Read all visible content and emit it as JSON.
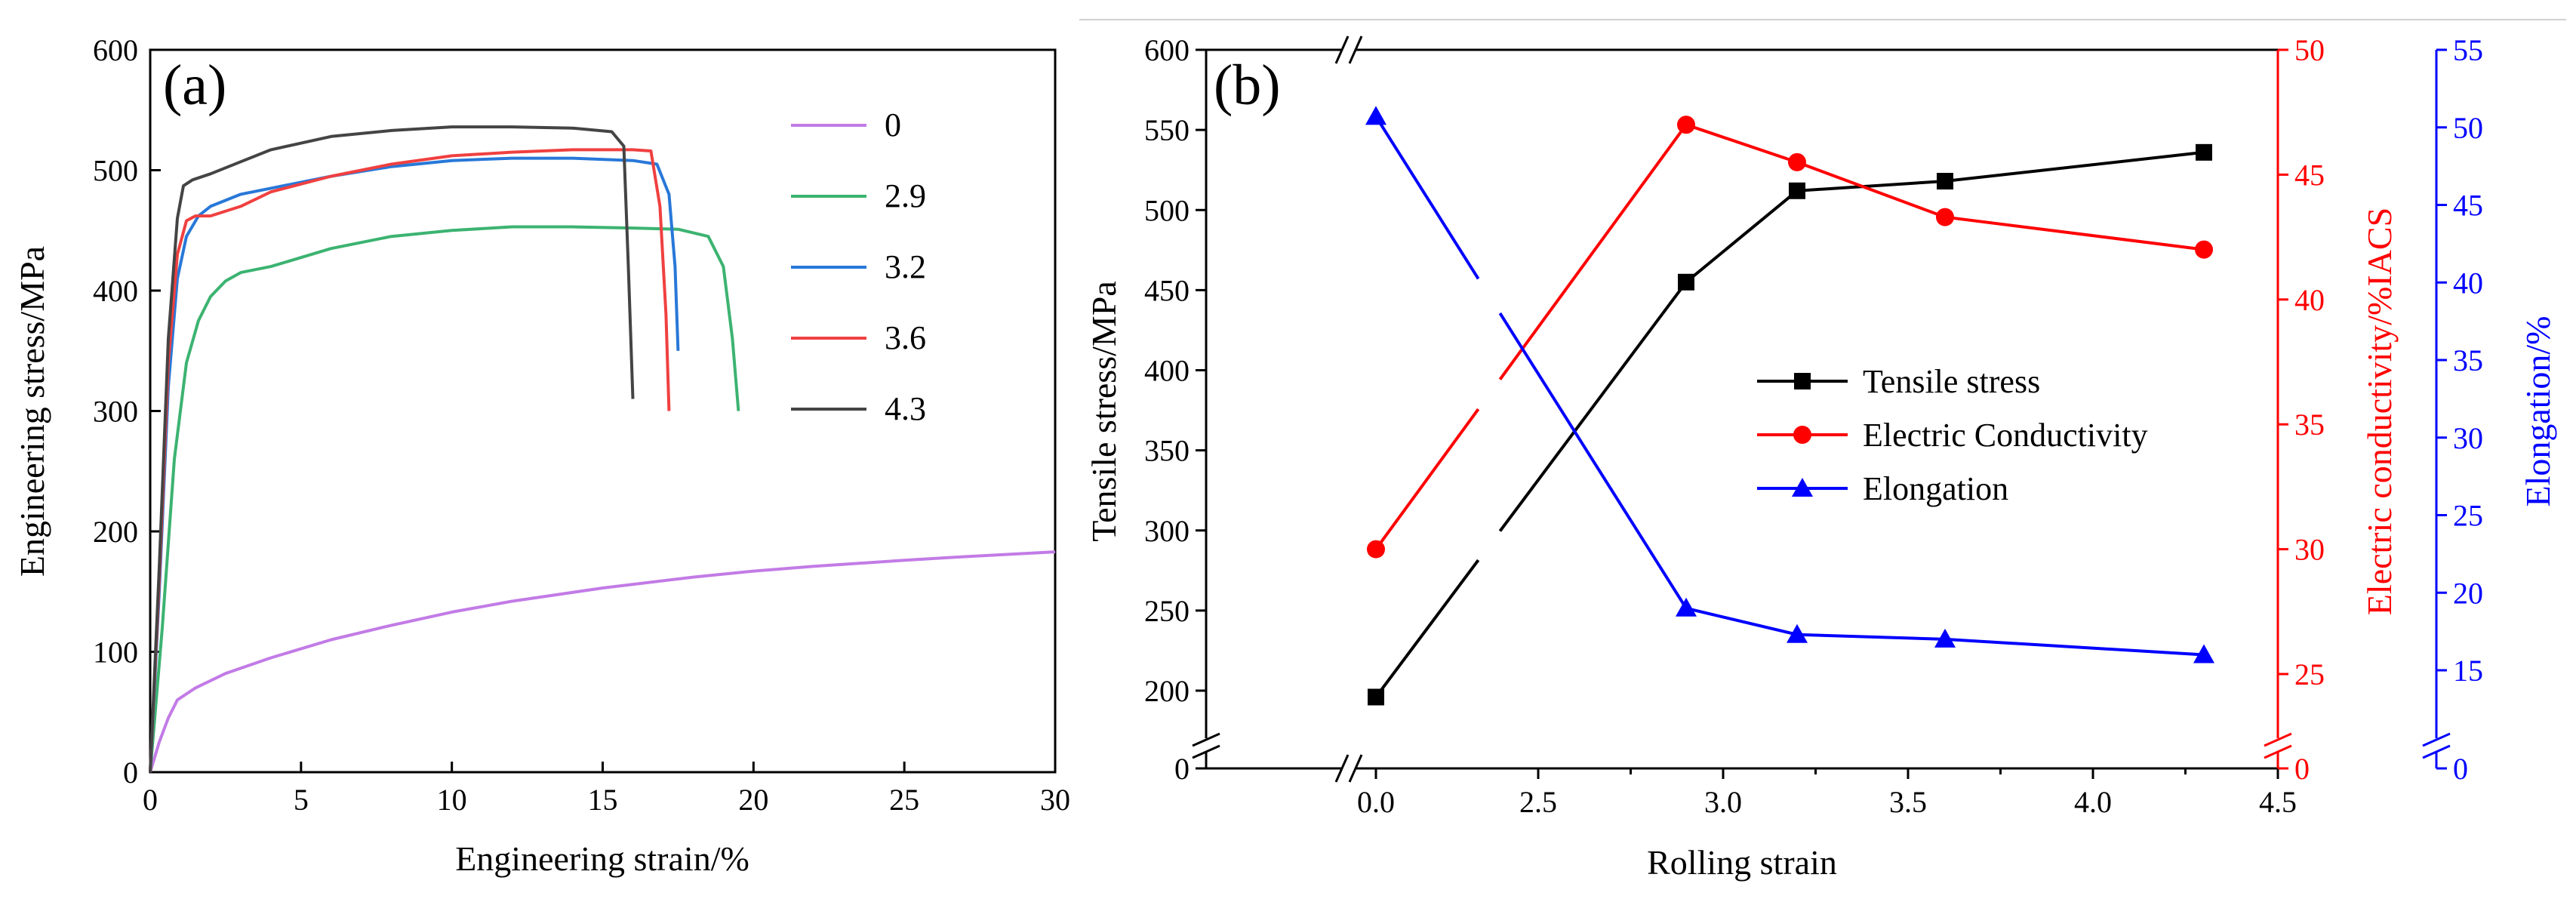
{
  "chart_data": [
    {
      "type": "line",
      "panel_label": "(a)",
      "xlabel": "Engineering strain/%",
      "ylabel": "Engineering stress/MPa",
      "xlim": [
        0,
        30
      ],
      "ylim": [
        0,
        600
      ],
      "xticks": [
        "0",
        "5",
        "10",
        "15",
        "20",
        "25",
        "30"
      ],
      "yticks": [
        "0",
        "100",
        "200",
        "300",
        "400",
        "500",
        "600"
      ],
      "grid": false,
      "legend_position": "top-right",
      "series": [
        {
          "name": "0",
          "color": "#c27be6",
          "x": [
            0,
            0.3,
            0.6,
            0.9,
            1.5,
            2.5,
            4,
            6,
            8,
            10,
            12,
            15,
            18,
            20,
            22,
            25,
            27,
            30
          ],
          "y": [
            0,
            25,
            45,
            60,
            70,
            82,
            95,
            110,
            122,
            133,
            142,
            153,
            162,
            167,
            171,
            176,
            179,
            183
          ]
        },
        {
          "name": "2.9",
          "color": "#3cb371",
          "x": [
            0,
            0.4,
            0.8,
            1.2,
            1.6,
            2.0,
            2.5,
            3.0,
            4,
            6,
            8,
            10,
            12,
            14,
            16,
            17.5,
            18.5,
            19.0,
            19.3,
            19.5
          ],
          "y": [
            0,
            120,
            260,
            340,
            375,
            395,
            408,
            415,
            420,
            435,
            445,
            450,
            453,
            453,
            452,
            451,
            445,
            420,
            360,
            300
          ]
        },
        {
          "name": "3.2",
          "color": "#2878d8",
          "x": [
            0,
            0.3,
            0.6,
            0.9,
            1.2,
            1.6,
            2.0,
            2.5,
            3.0,
            4,
            6,
            8,
            10,
            12,
            14,
            16,
            16.8,
            17.2,
            17.4,
            17.5
          ],
          "y": [
            0,
            150,
            320,
            410,
            445,
            462,
            470,
            475,
            480,
            485,
            495,
            503,
            508,
            510,
            510,
            508,
            505,
            480,
            420,
            350
          ]
        },
        {
          "name": "3.6",
          "color": "#f04040",
          "x": [
            0,
            0.3,
            0.6,
            0.9,
            1.2,
            1.5,
            2.0,
            3,
            4,
            6,
            8,
            10,
            12,
            14,
            16,
            16.6,
            16.9,
            17.1,
            17.2
          ],
          "y": [
            0,
            160,
            340,
            430,
            458,
            462,
            462,
            470,
            482,
            495,
            505,
            512,
            515,
            517,
            517,
            516,
            470,
            380,
            300
          ]
        },
        {
          "name": "4.3",
          "color": "#444444",
          "x": [
            0,
            0.3,
            0.6,
            0.9,
            1.1,
            1.4,
            2.0,
            3,
            4,
            6,
            8,
            10,
            12,
            14,
            15.3,
            15.7,
            15.85,
            16.0
          ],
          "y": [
            0,
            170,
            360,
            460,
            487,
            492,
            497,
            507,
            517,
            528,
            533,
            536,
            536,
            535,
            532,
            520,
            420,
            310
          ]
        }
      ]
    },
    {
      "type": "line",
      "panel_label": "(b)",
      "xlabel": "Rolling strain",
      "ylabel": "Tensile stress/MPa",
      "ylabel_right1": "Electric conductivity/%IACS",
      "ylabel_right2": "Elongation/%",
      "xlim": [
        -0.3,
        4.5
      ],
      "xticks": [
        "0.0",
        "2.5",
        "3.0",
        "3.5",
        "4.0",
        "4.5"
      ],
      "ylim_left": [
        180,
        600
      ],
      "yticks_left": [
        "0",
        "200",
        "250",
        "300",
        "350",
        "400",
        "450",
        "500",
        "550",
        "600"
      ],
      "ylim_right1": [
        23,
        50
      ],
      "yticks_right1": [
        "0",
        "25",
        "30",
        "35",
        "40",
        "45",
        "50"
      ],
      "ylim_right2": [
        12,
        55
      ],
      "yticks_right2": [
        "0",
        "15",
        "20",
        "25",
        "30",
        "35",
        "40",
        "45",
        "50",
        "55"
      ],
      "x_axis_break": "between 0.0 and 2.5",
      "y_axis_break": "near zero",
      "grid": false,
      "legend_position": "center-right",
      "categories_x": [
        0.0,
        2.9,
        3.2,
        3.6,
        4.3
      ],
      "series": [
        {
          "name": "Tensile stress",
          "color": "#000000",
          "marker": "square",
          "axis": "left",
          "values": [
            196,
            455,
            512,
            518,
            536
          ]
        },
        {
          "name": "Electric Conductivity",
          "color": "#ff0000",
          "marker": "circle",
          "axis": "right1",
          "values": [
            30.0,
            47.0,
            45.5,
            43.3,
            42.0
          ]
        },
        {
          "name": "Elongation",
          "color": "#0000ff",
          "marker": "triangle",
          "axis": "right2",
          "values": [
            50.7,
            19.0,
            17.3,
            17.0,
            16.0
          ]
        }
      ]
    }
  ]
}
